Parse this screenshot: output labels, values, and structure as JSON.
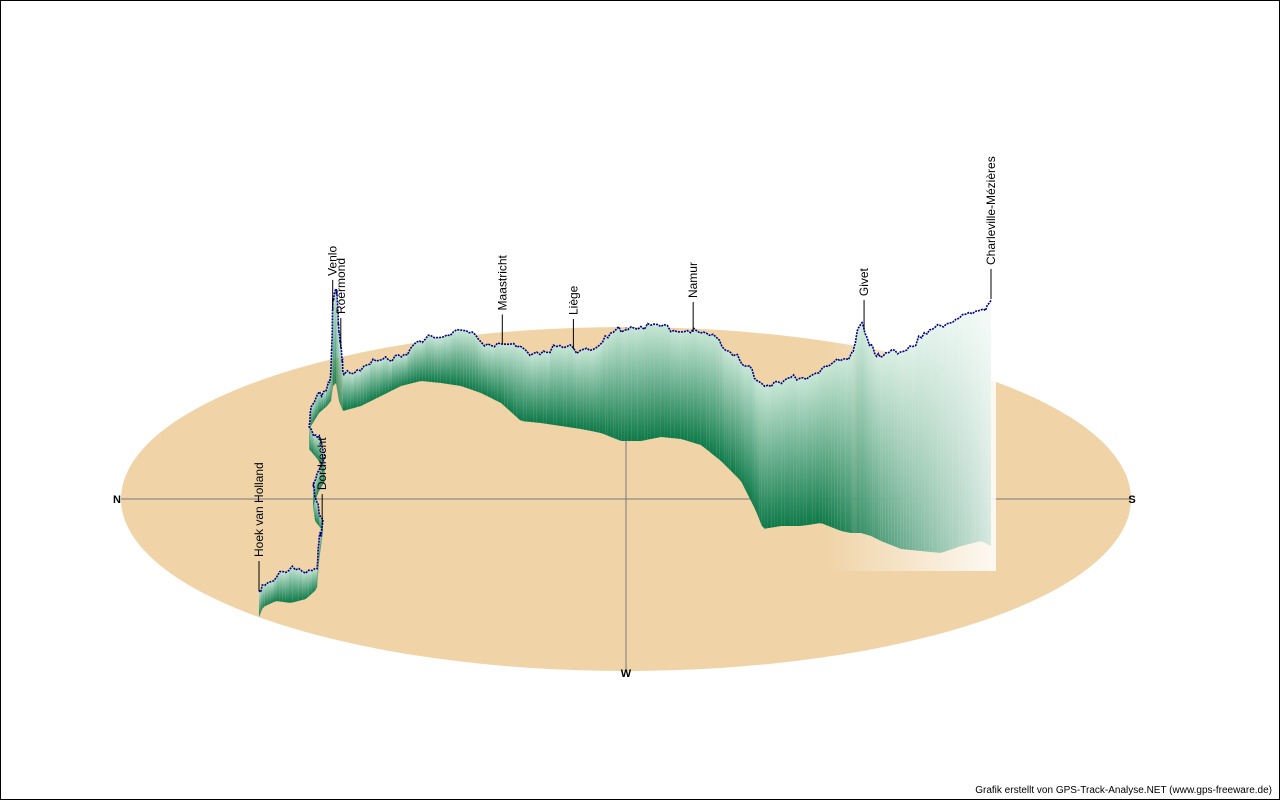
{
  "chart_data": {
    "type": "area",
    "title": "",
    "xlabel": "",
    "ylabel": "",
    "compass": {
      "north": "N",
      "south": "S",
      "west": "W"
    },
    "ellipse_color": "#f0d4a8",
    "fill_color": "#1a8a5a",
    "line_color": "#000080",
    "places": [
      {
        "name": "Hoek van Holland",
        "t": 0.0
      },
      {
        "name": "Dordrecht",
        "t": 0.09
      },
      {
        "name": "Venlo",
        "t": 0.28
      },
      {
        "name": "Roermond",
        "t": 0.355
      },
      {
        "name": "Maastricht",
        "t": 0.515
      },
      {
        "name": "Liège",
        "t": 0.575
      },
      {
        "name": "Namur",
        "t": 0.68
      },
      {
        "name": "Givet",
        "t": 0.865
      },
      {
        "name": "Charleville-Mézières",
        "t": 1.0
      }
    ]
  },
  "credit": "Grafik erstellt von GPS-Track-Analyse.NET (www.gps-freeware.de)"
}
